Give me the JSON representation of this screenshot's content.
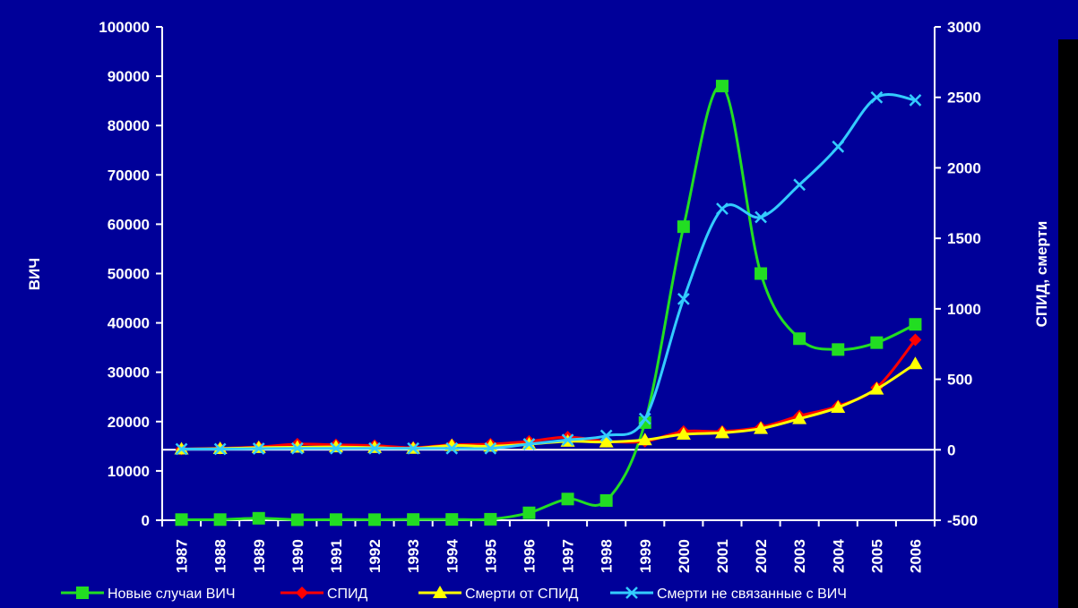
{
  "chart_data": {
    "type": "line",
    "categories": [
      "1987",
      "1988",
      "1989",
      "1990",
      "1991",
      "1992",
      "1993",
      "1994",
      "1995",
      "1996",
      "1997",
      "1998",
      "1999",
      "2000",
      "2001",
      "2002",
      "2003",
      "2004",
      "2005",
      "2006"
    ],
    "y_left": {
      "label": "ВИЧ",
      "range": [
        0,
        100000
      ],
      "ticks": [
        "0",
        "10000",
        "20000",
        "30000",
        "40000",
        "50000",
        "60000",
        "70000",
        "80000",
        "90000",
        "100000"
      ]
    },
    "y_right": {
      "label": "СПИД, смерти",
      "range": [
        -500,
        3000
      ],
      "ticks": [
        "-500",
        "0",
        "500",
        "1000",
        "1500",
        "2000",
        "2500",
        "3000"
      ]
    },
    "grid": false,
    "legend_position": "bottom",
    "series": [
      {
        "name": "Новые случаи ВИЧ",
        "axis": "left",
        "color": "#22dd22",
        "marker": "square",
        "values": [
          130,
          130,
          400,
          100,
          130,
          120,
          150,
          160,
          200,
          1500,
          4300,
          4000,
          19800,
          59500,
          88000,
          50000,
          36800,
          34600,
          36000,
          39700
        ]
      },
      {
        "name": "СПИД",
        "axis": "right",
        "color": "#ff0000",
        "marker": "diamond",
        "values": [
          5,
          10,
          20,
          40,
          35,
          30,
          15,
          35,
          40,
          60,
          90,
          60,
          60,
          130,
          130,
          160,
          240,
          310,
          440,
          780
        ]
      },
      {
        "name": "Смерти от СПИД",
        "axis": "right",
        "color": "#ffff00",
        "marker": "triangle",
        "values": [
          5,
          8,
          15,
          18,
          20,
          15,
          10,
          30,
          25,
          40,
          60,
          55,
          70,
          110,
          120,
          150,
          220,
          300,
          430,
          610
        ]
      },
      {
        "name": "Смерти не связанные с ВИЧ",
        "axis": "right",
        "color": "#33ccff",
        "marker": "x",
        "values": [
          5,
          5,
          8,
          10,
          10,
          10,
          10,
          10,
          10,
          40,
          70,
          100,
          220,
          1070,
          1710,
          1650,
          1880,
          2150,
          2500,
          2480
        ]
      }
    ]
  }
}
